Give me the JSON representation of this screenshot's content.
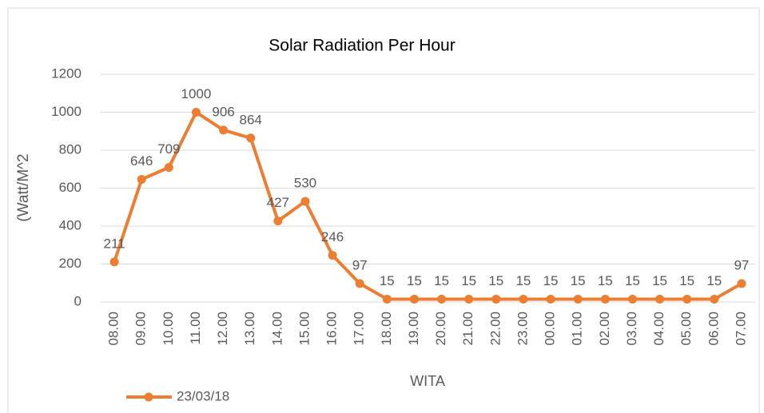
{
  "chart_data": {
    "type": "line",
    "title": "Solar Radiation Per Hour",
    "x_label": "WITA",
    "y_label": "(Watt/M^2",
    "categories": [
      "08.00",
      "09.00",
      "10.00",
      "11.00",
      "12.00",
      "13.00",
      "14.00",
      "15.00",
      "16.00",
      "17.00",
      "18.00",
      "19.00",
      "20.00",
      "21.00",
      "22.00",
      "23.00",
      "00.00",
      "01.00",
      "02.00",
      "03.00",
      "04.00",
      "05.00",
      "06.00",
      "07.00"
    ],
    "series": [
      {
        "name": "23/03/18",
        "color": "#ed7d31",
        "values": [
          211,
          646,
          709,
          1000,
          906,
          864,
          427,
          530,
          246,
          97,
          15,
          15,
          15,
          15,
          15,
          15,
          15,
          15,
          15,
          15,
          15,
          15,
          15,
          97
        ]
      }
    ],
    "ylim": [
      0,
      1200
    ],
    "yticks": [
      0,
      200,
      400,
      600,
      800,
      1000,
      1200
    ],
    "grid": true,
    "legend": "bottom-left",
    "data_labels": true
  }
}
